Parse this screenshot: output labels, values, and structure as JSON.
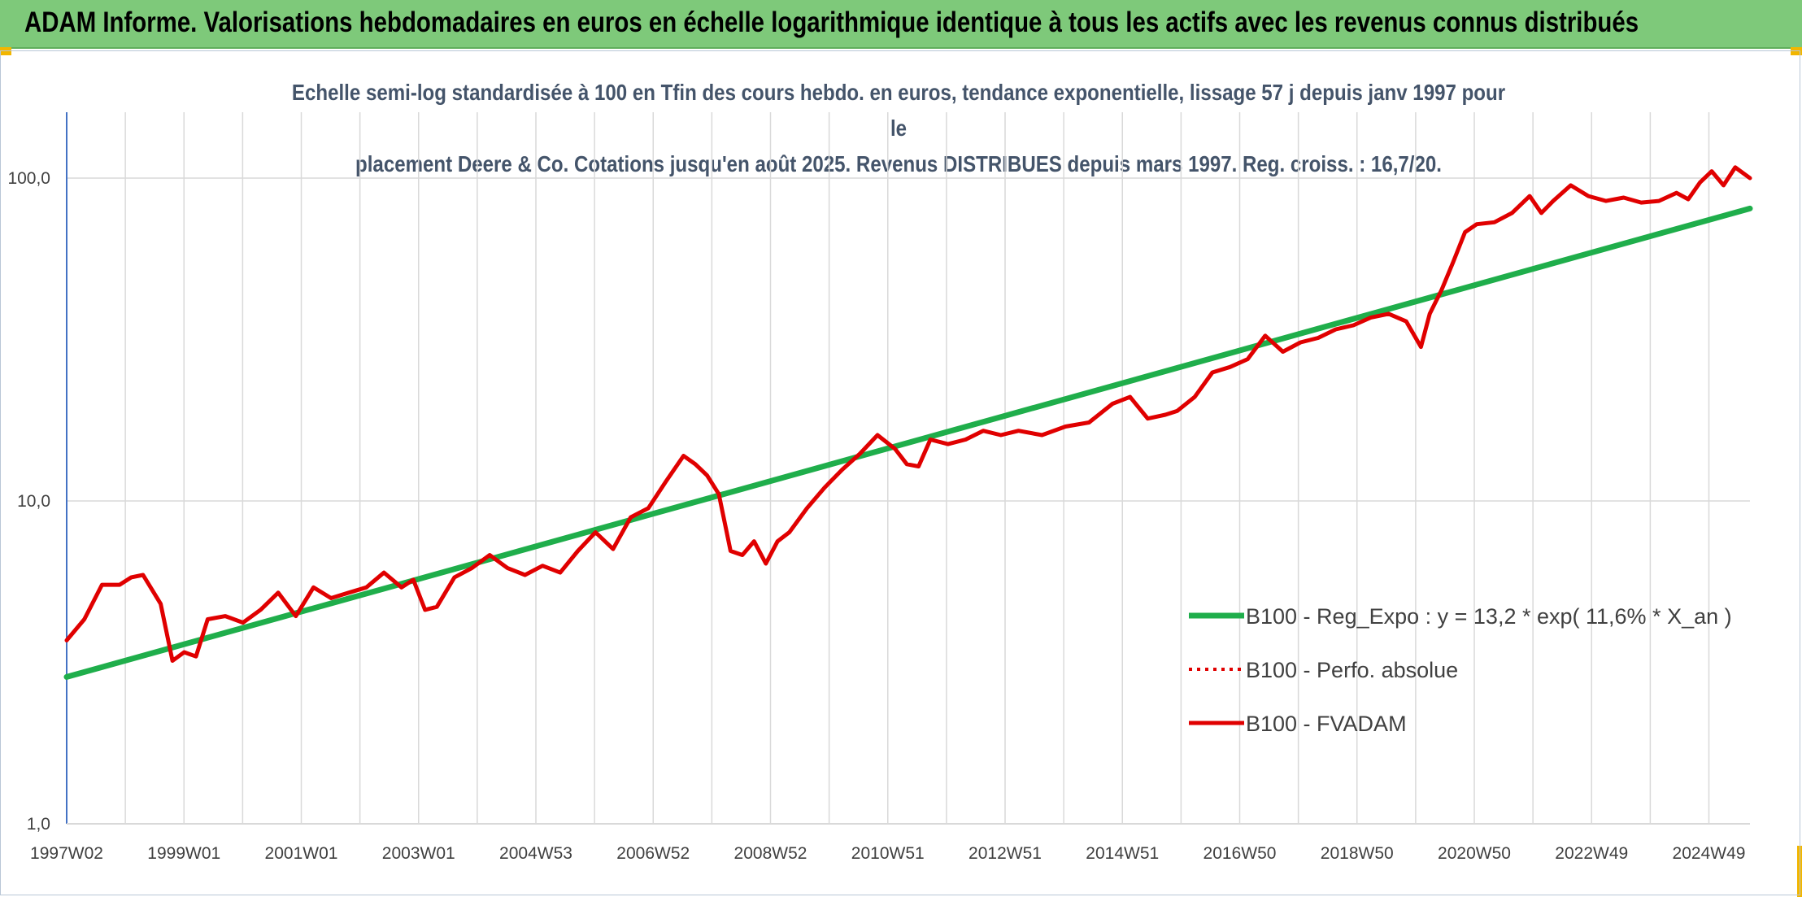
{
  "header": {
    "title": "ADAM Informe. Valorisations hebdomadaires en euros en échelle logarithmique identique à tous les actifs avec les revenus connus distribués",
    "background": "#7ec97a"
  },
  "chart_data": {
    "type": "line",
    "title_lines": [
      "Echelle semi-log standardisée à 100 en Tfin des cours hebdo. en euros, tendance exponentielle, lissage 57 j depuis janv 1997 pour le",
      "placement Deere & Co. Cotations jusqu'en août 2025. Revenus DISTRIBUES depuis mars 1997. Reg. croiss. : 16,7/20."
    ],
    "y_scale": "log",
    "ylim": [
      1,
      160
    ],
    "y_ticks": [
      "1,0",
      "10,0",
      "100,0"
    ],
    "x_ticks": [
      "1997W02",
      "1999W01",
      "2001W01",
      "2003W01",
      "2004W53",
      "2006W52",
      "2008W52",
      "2010W51",
      "2012W51",
      "2014W51",
      "2016W50",
      "2018W50",
      "2020W50",
      "2022W49",
      "2024W49"
    ],
    "x_range": [
      1997.0,
      2025.65
    ],
    "grid": true,
    "legend_position": "right",
    "series": [
      {
        "name": "B100 - Reg_Expo : y = 13,2 * exp( 11,6% *  X_an )",
        "color": "#1fae4b",
        "style": "solid",
        "x": [
          1997.0,
          2025.65
        ],
        "y": [
          2.85,
          80.5
        ]
      },
      {
        "name": "B100 - Perfo. absolue",
        "color": "#e00000",
        "style": "dotted",
        "x": [],
        "y": []
      },
      {
        "name": "B100 - FVADAM",
        "color": "#e00000",
        "style": "solid",
        "x": [
          1997.0,
          1997.3,
          1997.6,
          1997.9,
          1998.1,
          1998.3,
          1998.6,
          1998.8,
          1999.0,
          1999.2,
          1999.4,
          1999.7,
          2000.0,
          2000.3,
          2000.6,
          2000.9,
          2001.2,
          2001.5,
          2001.8,
          2002.1,
          2002.4,
          2002.7,
          2002.9,
          2003.1,
          2003.3,
          2003.6,
          2003.9,
          2004.2,
          2004.5,
          2004.8,
          2005.1,
          2005.4,
          2005.7,
          2006.0,
          2006.3,
          2006.6,
          2006.9,
          2007.2,
          2007.5,
          2007.7,
          2007.9,
          2008.1,
          2008.3,
          2008.5,
          2008.7,
          2008.9,
          2009.1,
          2009.3,
          2009.6,
          2009.9,
          2010.2,
          2010.5,
          2010.8,
          2011.1,
          2011.3,
          2011.5,
          2011.7,
          2012.0,
          2012.3,
          2012.6,
          2012.9,
          2013.2,
          2013.6,
          2014.0,
          2014.4,
          2014.8,
          2015.1,
          2015.4,
          2015.7,
          2015.9,
          2016.2,
          2016.5,
          2016.8,
          2017.1,
          2017.4,
          2017.7,
          2018.0,
          2018.3,
          2018.6,
          2018.9,
          2019.2,
          2019.5,
          2019.8,
          2020.05,
          2020.2,
          2020.4,
          2020.6,
          2020.8,
          2021.0,
          2021.3,
          2021.6,
          2021.9,
          2022.1,
          2022.3,
          2022.6,
          2022.9,
          2023.2,
          2023.5,
          2023.8,
          2024.1,
          2024.4,
          2024.6,
          2024.8,
          2025.0,
          2025.2,
          2025.4,
          2025.65
        ],
        "y": [
          3.7,
          4.3,
          5.5,
          5.5,
          5.8,
          5.9,
          4.8,
          3.2,
          3.4,
          3.3,
          4.3,
          4.4,
          4.2,
          4.6,
          5.2,
          4.4,
          5.4,
          5.0,
          5.2,
          5.4,
          6.0,
          5.4,
          5.7,
          4.6,
          4.7,
          5.8,
          6.2,
          6.8,
          6.2,
          5.9,
          6.3,
          6.0,
          7.0,
          8.0,
          7.1,
          8.9,
          9.5,
          11.5,
          13.8,
          13.0,
          12.0,
          10.5,
          7.0,
          6.8,
          7.5,
          6.4,
          7.5,
          8.0,
          9.5,
          11.0,
          12.5,
          14.0,
          16.0,
          14.5,
          13.0,
          12.8,
          15.5,
          15.0,
          15.5,
          16.5,
          16.0,
          16.5,
          16.0,
          17.0,
          17.5,
          20.0,
          21.0,
          18.0,
          18.5,
          19.0,
          21.0,
          25.0,
          26.0,
          27.5,
          32.5,
          29.0,
          31.0,
          32.0,
          34.0,
          35.0,
          37.0,
          38.0,
          36.0,
          30.0,
          38.0,
          45.0,
          55.0,
          68.0,
          72.0,
          73.0,
          78.0,
          88.0,
          78.0,
          85.0,
          95.0,
          88.0,
          85.0,
          87.0,
          84.0,
          85.0,
          90.0,
          86.0,
          97.0,
          105.0,
          95.0,
          108.0,
          100.0
        ]
      }
    ]
  }
}
